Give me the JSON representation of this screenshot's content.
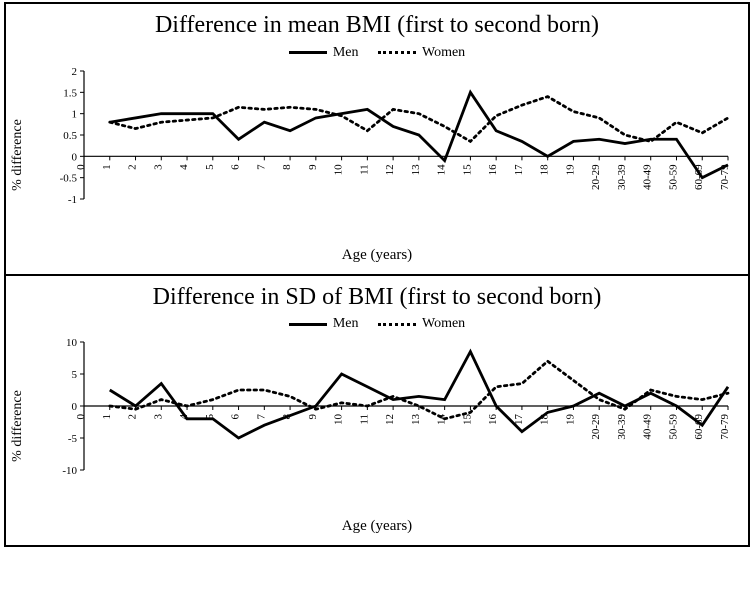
{
  "charts": [
    {
      "title": "Difference in mean BMI (first to second born)",
      "type": "line",
      "xlabel": "Age (years)",
      "ylabel": "% difference",
      "background_color": "#ffffff",
      "axis_color": "#000000",
      "title_fontsize": 24,
      "label_fontsize": 14,
      "tick_fontsize": 11,
      "x_ticks": [
        "0",
        "1",
        "2",
        "3",
        "4",
        "5",
        "6",
        "7",
        "8",
        "9",
        "10",
        "11",
        "12",
        "13",
        "14",
        "15",
        "16",
        "17",
        "18",
        "19",
        "20-29",
        "30-39",
        "40-49",
        "50-59",
        "60-69",
        "70-79"
      ],
      "y_ticks": [
        -1,
        -0.5,
        0,
        0.5,
        1,
        1.5,
        2
      ],
      "ylim": [
        -1,
        2
      ],
      "legend": [
        {
          "label": "Men",
          "style": "solid",
          "color": "#000000",
          "stroke_width": 2.8
        },
        {
          "label": "Women",
          "style": "dotted",
          "color": "#000000",
          "stroke_width": 2.8
        }
      ],
      "series": [
        {
          "name": "Men",
          "style": "solid",
          "color": "#000000",
          "stroke_width": 2.8,
          "x_index": [
            1,
            2,
            3,
            4,
            5,
            6,
            7,
            8,
            9,
            10,
            11,
            12,
            13,
            14,
            15,
            16,
            17,
            18,
            19,
            20,
            21,
            22,
            23,
            24,
            25
          ],
          "y": [
            0.8,
            0.9,
            1.0,
            1.0,
            1.0,
            0.4,
            0.8,
            0.6,
            0.9,
            1.0,
            1.1,
            0.7,
            0.5,
            -0.1,
            1.5,
            0.6,
            0.35,
            0.0,
            0.35,
            0.4,
            0.3,
            0.4,
            0.4,
            -0.5,
            -0.2
          ]
        },
        {
          "name": "Women",
          "style": "dotted",
          "color": "#000000",
          "stroke_width": 2.8,
          "x_index": [
            1,
            2,
            3,
            4,
            5,
            6,
            7,
            8,
            9,
            10,
            11,
            12,
            13,
            14,
            15,
            16,
            17,
            18,
            19,
            20,
            21,
            22,
            23,
            24,
            25
          ],
          "y": [
            0.8,
            0.65,
            0.8,
            0.85,
            0.9,
            1.15,
            1.1,
            1.15,
            1.1,
            0.95,
            0.6,
            1.1,
            1.0,
            0.7,
            0.35,
            0.95,
            1.2,
            1.4,
            1.05,
            0.9,
            0.5,
            0.35,
            0.8,
            0.55,
            0.9
          ]
        }
      ]
    },
    {
      "title": "Difference in SD of BMI (first to second born)",
      "type": "line",
      "xlabel": "Age (years)",
      "ylabel": "% difference",
      "background_color": "#ffffff",
      "axis_color": "#000000",
      "title_fontsize": 24,
      "label_fontsize": 14,
      "tick_fontsize": 11,
      "x_ticks": [
        "0",
        "1",
        "2",
        "3",
        "4",
        "5",
        "6",
        "7",
        "8",
        "9",
        "10",
        "11",
        "12",
        "13",
        "14",
        "15",
        "16",
        "17",
        "18",
        "19",
        "20-29",
        "30-39",
        "40-49",
        "50-59",
        "60-69",
        "70-79"
      ],
      "y_ticks": [
        -10,
        -5,
        0,
        5,
        10
      ],
      "ylim": [
        -10,
        10
      ],
      "legend": [
        {
          "label": "Men",
          "style": "solid",
          "color": "#000000",
          "stroke_width": 2.8
        },
        {
          "label": "Women",
          "style": "dotted",
          "color": "#000000",
          "stroke_width": 2.8
        }
      ],
      "series": [
        {
          "name": "Men",
          "style": "solid",
          "color": "#000000",
          "stroke_width": 2.8,
          "x_index": [
            1,
            2,
            3,
            4,
            5,
            6,
            7,
            8,
            9,
            10,
            11,
            12,
            13,
            14,
            15,
            16,
            17,
            18,
            19,
            20,
            21,
            22,
            23,
            24,
            25
          ],
          "y": [
            2.5,
            0.0,
            3.5,
            -2.0,
            -2.0,
            -5.0,
            -3.0,
            -1.5,
            0.0,
            5.0,
            3.0,
            1.0,
            1.5,
            1.0,
            8.5,
            0.0,
            -4.0,
            -1.0,
            0.0,
            2.0,
            0.0,
            2.0,
            0.0,
            -3.0,
            3.0
          ]
        },
        {
          "name": "Women",
          "style": "dotted",
          "color": "#000000",
          "stroke_width": 2.8,
          "x_index": [
            1,
            2,
            3,
            4,
            5,
            6,
            7,
            8,
            9,
            10,
            11,
            12,
            13,
            14,
            15,
            16,
            17,
            18,
            19,
            20,
            21,
            22,
            23,
            24,
            25
          ],
          "y": [
            0.0,
            -0.5,
            1.0,
            0.0,
            1.0,
            2.5,
            2.5,
            1.5,
            -0.5,
            0.5,
            0.0,
            1.5,
            0.0,
            -2.0,
            -1.0,
            3.0,
            3.5,
            7.0,
            4.0,
            1.0,
            -0.5,
            2.5,
            1.5,
            1.0,
            2.0
          ]
        }
      ]
    }
  ]
}
